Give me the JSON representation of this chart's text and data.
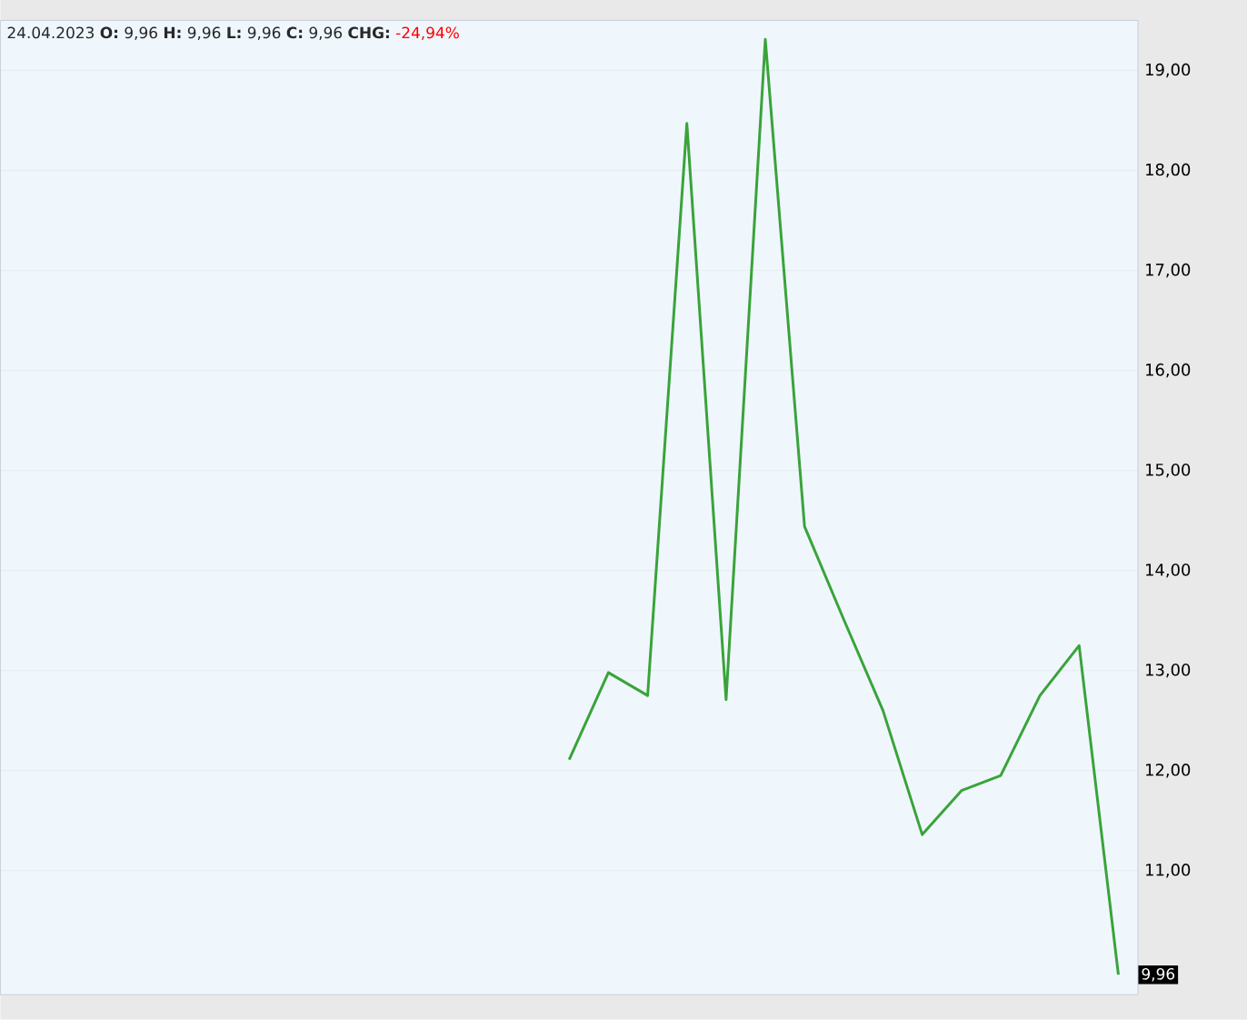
{
  "chart_data": {
    "type": "line",
    "categories": [
      null,
      null,
      null,
      null,
      null,
      null,
      null,
      null,
      null,
      null,
      null,
      null,
      null,
      null,
      null,
      null,
      null,
      null,
      null,
      null,
      null,
      null,
      null,
      null,
      null,
      null,
      null,
      null,
      null
    ],
    "series": [
      {
        "color": "#3aa33a",
        "values": [
          null,
          null,
          null,
          null,
          null,
          null,
          null,
          null,
          null,
          null,
          null,
          null,
          null,
          null,
          12.11,
          12.98,
          12.75,
          18.47,
          12.71,
          19.31,
          14.44,
          13.51,
          12.6,
          11.36,
          11.8,
          11.95,
          12.75,
          13.25,
          9.96
        ],
        "value_labels": [
          null,
          null,
          null,
          null,
          null,
          null,
          null,
          null,
          null,
          null,
          null,
          null,
          null,
          null,
          null,
          null,
          null,
          null,
          null,
          null,
          null,
          null,
          null,
          null,
          null,
          null,
          null,
          null,
          "9,96"
        ]
      }
    ],
    "ylim": [
      9.76,
      19.5
    ],
    "yticks": [
      {
        "value": 11,
        "label": "11,00"
      },
      {
        "value": 12,
        "label": "12,00"
      },
      {
        "value": 13,
        "label": "13,00"
      },
      {
        "value": 14,
        "label": "14,00"
      },
      {
        "value": 15,
        "label": "15,00"
      },
      {
        "value": 16,
        "label": "16,00"
      },
      {
        "value": 17,
        "label": "17,00"
      },
      {
        "value": 18,
        "label": "18,00"
      },
      {
        "value": 19,
        "label": "19,00"
      }
    ],
    "grid": "y",
    "annotations": [
      "24.04.2023 **O:** 9,96 **H:** 9,96 **L:** 9,96 **C:** 9,96 **CHG:**",
      "-24,94%"
    ]
  }
}
